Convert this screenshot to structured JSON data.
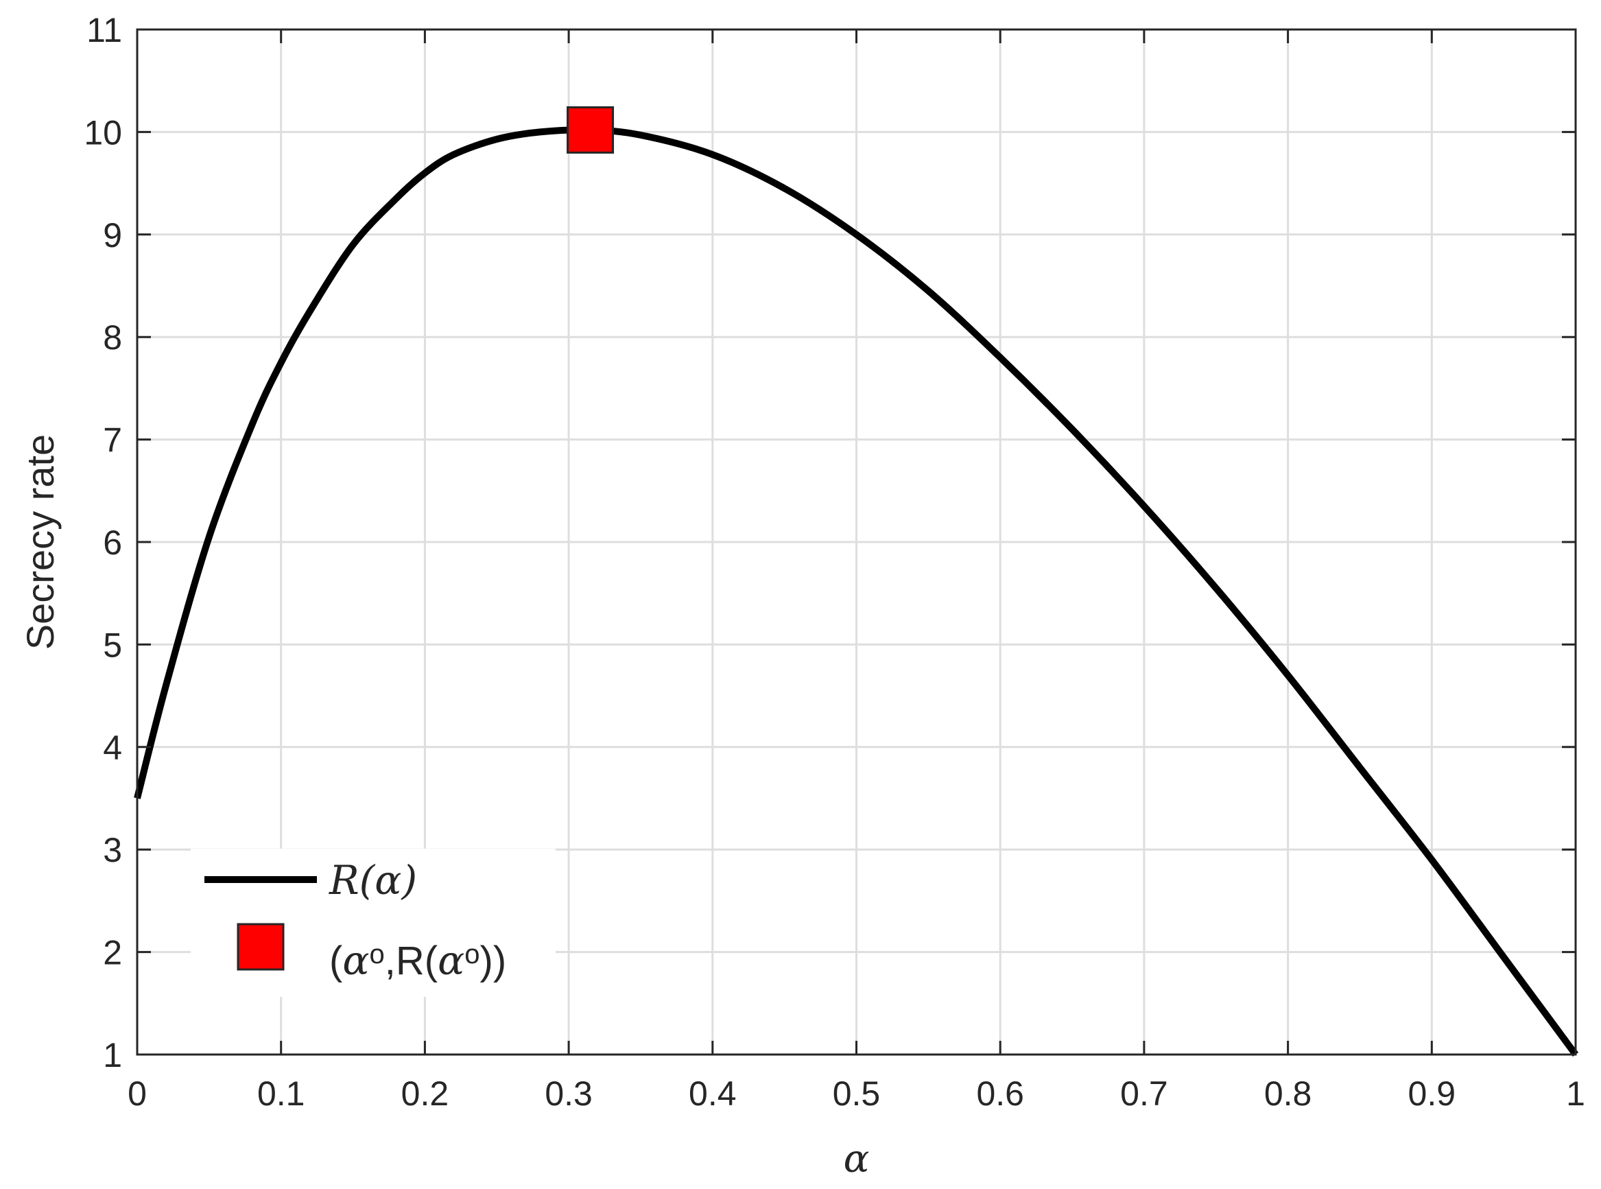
{
  "chart_data": {
    "type": "line",
    "xlabel": "α",
    "ylabel": "Secrecy rate",
    "xlim": [
      0,
      1
    ],
    "ylim": [
      1,
      11
    ],
    "x_ticks": [
      0,
      0.1,
      0.2,
      0.3,
      0.4,
      0.5,
      0.6,
      0.7,
      0.8,
      0.9,
      1
    ],
    "x_tick_labels": [
      "0",
      "0.1",
      "0.2",
      "0.3",
      "0.4",
      "0.5",
      "0.6",
      "0.7",
      "0.8",
      "0.9",
      "1"
    ],
    "y_ticks": [
      1,
      2,
      3,
      4,
      5,
      6,
      7,
      8,
      9,
      10,
      11
    ],
    "y_tick_labels": [
      "1",
      "2",
      "3",
      "4",
      "5",
      "6",
      "7",
      "8",
      "9",
      "10",
      "11"
    ],
    "grid": true,
    "legend_position": "bottom-left",
    "series": [
      {
        "name": "R(α)",
        "color": "#000000",
        "x": [
          0,
          0.02,
          0.05,
          0.08,
          0.1,
          0.12,
          0.15,
          0.18,
          0.2,
          0.22,
          0.25,
          0.28,
          0.315,
          0.35,
          0.4,
          0.45,
          0.5,
          0.55,
          0.6,
          0.65,
          0.7,
          0.75,
          0.8,
          0.85,
          0.9,
          0.95,
          1.0
        ],
        "y": [
          3.5,
          4.6,
          6.05,
          7.15,
          7.75,
          8.25,
          8.9,
          9.35,
          9.6,
          9.78,
          9.93,
          10.0,
          10.02,
          9.97,
          9.78,
          9.45,
          9.0,
          8.45,
          7.8,
          7.1,
          6.35,
          5.55,
          4.7,
          3.8,
          2.9,
          1.95,
          1.0
        ]
      }
    ],
    "markers": [
      {
        "name": "(αo,R(αo))",
        "shape": "square",
        "color": "#ff0000",
        "x": 0.315,
        "y": 10.02
      }
    ]
  },
  "legend": {
    "line_label": "R(α)",
    "marker_label": "(αo,R(αo))"
  }
}
